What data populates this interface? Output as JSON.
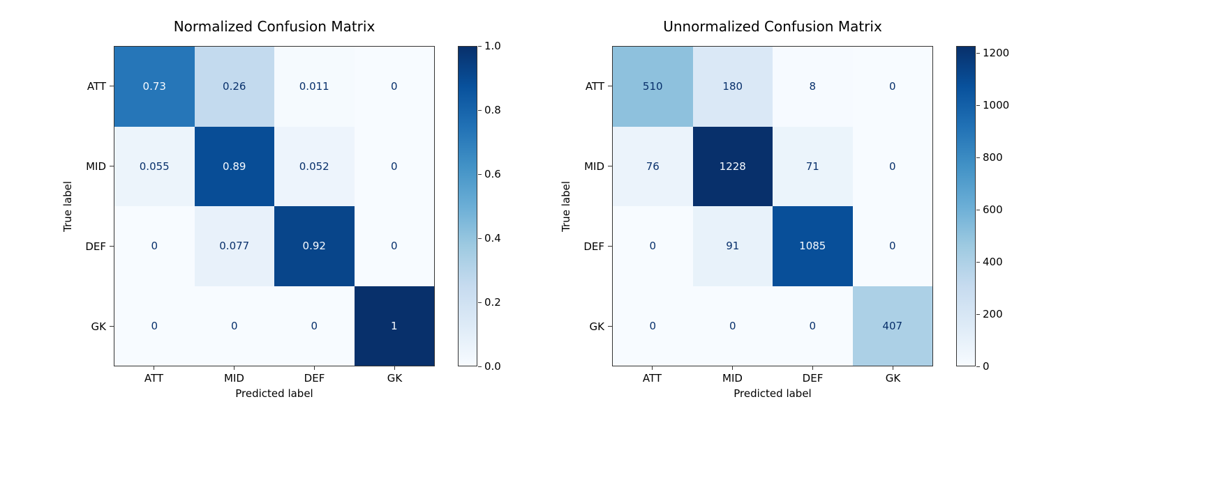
{
  "colors": {
    "background": "#ffffff",
    "frame": "#333333",
    "cell_text_light": "#f7fbff",
    "cell_text_dark": "#08306b",
    "colormap": "Blues",
    "colormap_stops": [
      "#f7fbff",
      "#deebf7",
      "#c6dbef",
      "#9ecae1",
      "#6baed6",
      "#4292c6",
      "#2171b5",
      "#08519c",
      "#08306b"
    ]
  },
  "chart_data": [
    {
      "type": "heatmap",
      "title": "Normalized Confusion Matrix",
      "xlabel": "Predicted label",
      "ylabel": "True label",
      "x_categories": [
        "ATT",
        "MID",
        "DEF",
        "GK"
      ],
      "y_categories": [
        "ATT",
        "MID",
        "DEF",
        "GK"
      ],
      "values": [
        [
          0.73,
          0.26,
          0.011,
          0
        ],
        [
          0.055,
          0.89,
          0.052,
          0
        ],
        [
          0,
          0.077,
          0.92,
          0
        ],
        [
          0,
          0,
          0,
          1
        ]
      ],
      "cell_labels": [
        [
          "0.73",
          "0.26",
          "0.011",
          "0"
        ],
        [
          "0.055",
          "0.89",
          "0.052",
          "0"
        ],
        [
          "0",
          "0.077",
          "0.92",
          "0"
        ],
        [
          "0",
          "0",
          "0",
          "1"
        ]
      ],
      "vmin": 0,
      "vmax": 1.0,
      "colorbar_ticks": [
        {
          "value": 1.0,
          "label": "1.0"
        },
        {
          "value": 0.8,
          "label": "0.8"
        },
        {
          "value": 0.6,
          "label": "0.6"
        },
        {
          "value": 0.4,
          "label": "0.4"
        },
        {
          "value": 0.2,
          "label": "0.2"
        },
        {
          "value": 0.0,
          "label": "0.0"
        }
      ]
    },
    {
      "type": "heatmap",
      "title": "Unnormalized Confusion Matrix",
      "xlabel": "Predicted label",
      "ylabel": "True label",
      "x_categories": [
        "ATT",
        "MID",
        "DEF",
        "GK"
      ],
      "y_categories": [
        "ATT",
        "MID",
        "DEF",
        "GK"
      ],
      "values": [
        [
          510,
          180,
          8,
          0
        ],
        [
          76,
          1228,
          71,
          0
        ],
        [
          0,
          91,
          1085,
          0
        ],
        [
          0,
          0,
          0,
          407
        ]
      ],
      "cell_labels": [
        [
          "510",
          "180",
          "8",
          "0"
        ],
        [
          "76",
          "1228",
          "71",
          "0"
        ],
        [
          "0",
          "91",
          "1085",
          "0"
        ],
        [
          "0",
          "0",
          "0",
          "407"
        ]
      ],
      "vmin": 0,
      "vmax": 1228,
      "colorbar_ticks": [
        {
          "value": 1200,
          "label": "1200"
        },
        {
          "value": 1000,
          "label": "1000"
        },
        {
          "value": 800,
          "label": "800"
        },
        {
          "value": 600,
          "label": "600"
        },
        {
          "value": 400,
          "label": "400"
        },
        {
          "value": 200,
          "label": "200"
        },
        {
          "value": 0,
          "label": "0"
        }
      ]
    }
  ]
}
